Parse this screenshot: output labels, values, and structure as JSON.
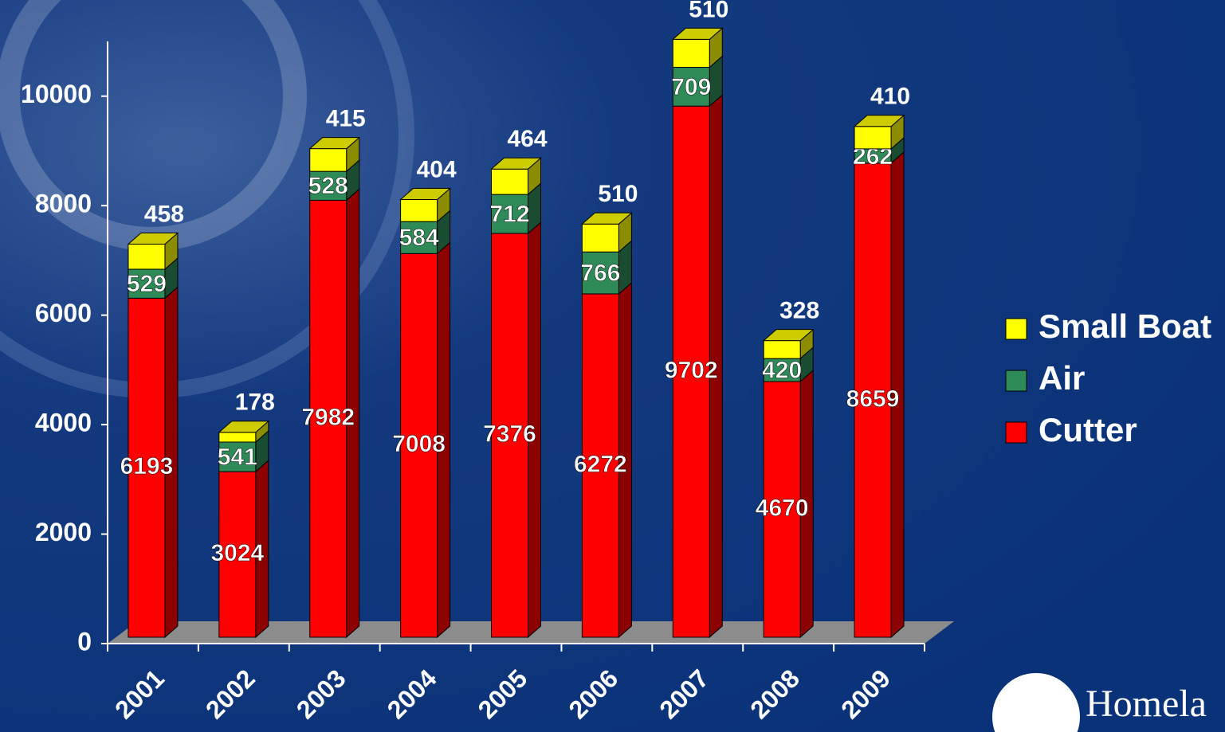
{
  "chart_data": {
    "type": "bar3d_stacked",
    "categories": [
      "2001",
      "2002",
      "2003",
      "2004",
      "2005",
      "2006",
      "2007",
      "2008",
      "2009"
    ],
    "series": [
      {
        "name": "Cutter",
        "color": "#ff0000",
        "values": [
          6193,
          3024,
          7982,
          7008,
          7376,
          6272,
          9702,
          4670,
          8659
        ]
      },
      {
        "name": "Air",
        "color": "#2e8b57",
        "values": [
          529,
          541,
          528,
          584,
          712,
          766,
          709,
          420,
          262
        ]
      },
      {
        "name": "Small Boat",
        "color": "#ffff00",
        "values": [
          458,
          178,
          415,
          404,
          464,
          510,
          510,
          328,
          410
        ]
      }
    ],
    "ylim": [
      0,
      11000
    ],
    "yticks": [
      0,
      2000,
      4000,
      6000,
      8000,
      10000
    ],
    "legend": "right",
    "footer": "Homela"
  }
}
